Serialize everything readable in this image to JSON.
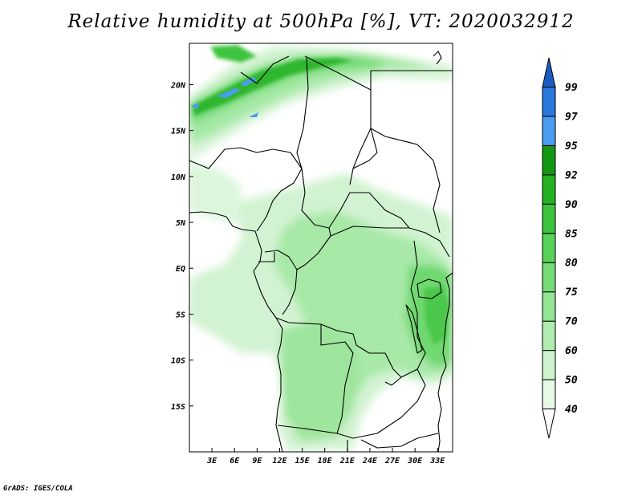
{
  "title": "Relative humidity at 500hPa [%], VT: 2020032912",
  "credit": "GrADS: IGES/COLA",
  "map": {
    "lon_range": [
      0,
      35
    ],
    "lat_range": [
      -20,
      24.5
    ],
    "lon_ticks": [
      {
        "value": 3,
        "label": "3E"
      },
      {
        "value": 6,
        "label": "6E"
      },
      {
        "value": 9,
        "label": "9E"
      },
      {
        "value": 12,
        "label": "12E"
      },
      {
        "value": 15,
        "label": "15E"
      },
      {
        "value": 18,
        "label": "18E"
      },
      {
        "value": 21,
        "label": "21E"
      },
      {
        "value": 24,
        "label": "24E"
      },
      {
        "value": 27,
        "label": "27E"
      },
      {
        "value": 30,
        "label": "30E"
      },
      {
        "value": 33,
        "label": "33E"
      }
    ],
    "lat_ticks": [
      {
        "value": 20,
        "label": "20N"
      },
      {
        "value": 15,
        "label": "15N"
      },
      {
        "value": 10,
        "label": "10N"
      },
      {
        "value": 5,
        "label": "5N"
      },
      {
        "value": 0,
        "label": "EQ"
      },
      {
        "value": -5,
        "label": "5S"
      },
      {
        "value": -10,
        "label": "10S"
      },
      {
        "value": -15,
        "label": "15S"
      }
    ]
  },
  "colorbar": {
    "levels": [
      "40",
      "50",
      "60",
      "70",
      "75",
      "80",
      "85",
      "90",
      "92",
      "95",
      "97",
      "99"
    ],
    "colors": [
      "#ffffff",
      "#e6f9e6",
      "#cdf2cd",
      "#b0ebb0",
      "#93e493",
      "#76dc76",
      "#58d258",
      "#3cc43c",
      "#24b224",
      "#149814",
      "#4a9cf0",
      "#2a78dc",
      "#1a5cc4"
    ]
  }
}
